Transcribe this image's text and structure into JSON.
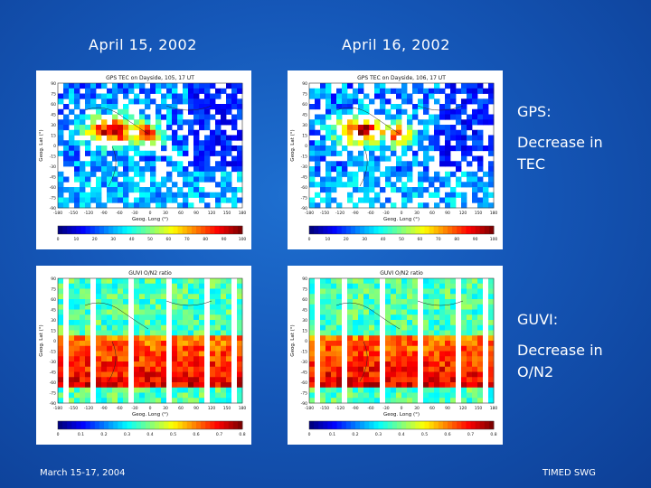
{
  "slide": {
    "date_left": "April 15, 2002",
    "date_right": "April 16, 2002",
    "gps_caption": {
      "label": "GPS:",
      "line1": "Decrease in",
      "line2": "TEC"
    },
    "guvi_caption": {
      "label": "GUVI:",
      "line1": "Decrease in",
      "line2": "O/N2"
    },
    "footer_left": "March 15-17, 2004",
    "footer_right": "TIMED SWG"
  },
  "plots": {
    "gps_left": {
      "title": "GPS TEC on Dayside, 105, 17 UT",
      "ylabel": "Geog. Lat (°)",
      "xlabel": "Geog. Long (°)",
      "y_ticks": [
        "90",
        "75",
        "60",
        "45",
        "30",
        "15",
        "0",
        "-15",
        "-30",
        "-45",
        "-60",
        "-75",
        "-90"
      ],
      "x_ticks": [
        "-180",
        "-150",
        "-120",
        "-90",
        "-60",
        "-30",
        "0",
        "30",
        "60",
        "90",
        "120",
        "150",
        "180"
      ],
      "colorbar_ticks": [
        "0",
        "10",
        "20",
        "30",
        "40",
        "50",
        "60",
        "70",
        "80",
        "90",
        "100"
      ]
    },
    "gps_right": {
      "title": "GPS TEC on Dayside, 106, 17 UT",
      "ylabel": "Geog. Lat (°)",
      "xlabel": "Geog. Long (°)",
      "y_ticks": [
        "90",
        "75",
        "60",
        "45",
        "30",
        "15",
        "0",
        "-15",
        "-30",
        "-45",
        "-60",
        "-75",
        "-90"
      ],
      "x_ticks": [
        "-180",
        "-150",
        "-120",
        "-90",
        "-60",
        "-30",
        "0",
        "30",
        "60",
        "90",
        "120",
        "150",
        "180"
      ],
      "colorbar_ticks": [
        "0",
        "10",
        "20",
        "30",
        "40",
        "50",
        "60",
        "70",
        "80",
        "90",
        "100"
      ]
    },
    "guvi_left": {
      "title": "GUVI O/N2 ratio",
      "ylabel": "Geog. Lat (°)",
      "xlabel": "Geog. Long (°)",
      "y_ticks": [
        "90",
        "75",
        "60",
        "45",
        "30",
        "15",
        "0",
        "-15",
        "-30",
        "-45",
        "-60",
        "-75",
        "-90"
      ],
      "x_ticks": [
        "-180",
        "-150",
        "-120",
        "-90",
        "-60",
        "-30",
        "0",
        "30",
        "60",
        "90",
        "120",
        "150",
        "180"
      ],
      "colorbar_ticks": [
        "0",
        "0.1",
        "0.2",
        "0.3",
        "0.4",
        "0.5",
        "0.6",
        "0.7",
        "0.8"
      ]
    },
    "guvi_right": {
      "title": "GUVI O/N2 ratio",
      "ylabel": "Geog. Lat (°)",
      "xlabel": "Geog. Long (°)",
      "y_ticks": [
        "90",
        "75",
        "60",
        "45",
        "30",
        "15",
        "0",
        "-15",
        "-30",
        "-45",
        "-60",
        "-75",
        "-90"
      ],
      "x_ticks": [
        "-180",
        "-150",
        "-120",
        "-90",
        "-60",
        "-30",
        "0",
        "30",
        "60",
        "90",
        "120",
        "150",
        "180"
      ],
      "colorbar_ticks": [
        "0",
        "0.1",
        "0.2",
        "0.3",
        "0.4",
        "0.5",
        "0.6",
        "0.7",
        "0.8"
      ]
    }
  },
  "colors": {
    "background": "#1557b8",
    "text": "#ffffff",
    "panel_bg": "#ffffff",
    "jet_low": "#00008f",
    "jet_mid": "#80ff80",
    "jet_high": "#800000"
  }
}
